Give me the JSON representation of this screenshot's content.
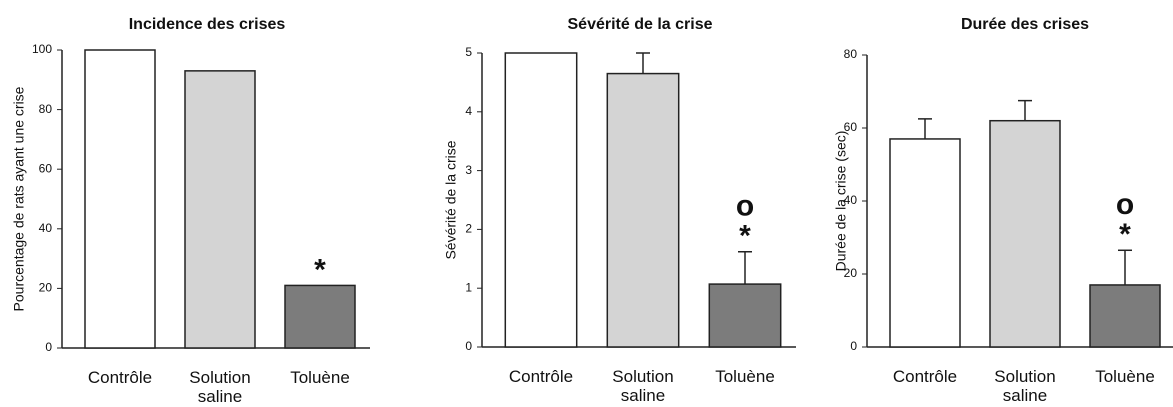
{
  "chart_data": [
    {
      "type": "bar",
      "title": "Incidence des crises",
      "ylabel": "Pourcentage de rats ayant une crise",
      "categories": [
        "Contrôle",
        "Solution saline",
        "Toluène"
      ],
      "values": [
        100,
        93,
        21
      ],
      "colors": [
        "#ffffff",
        "#d4d4d4",
        "#7c7c7c"
      ],
      "ylim": [
        0,
        100
      ],
      "yticks": [
        0,
        20,
        40,
        60,
        80,
        100
      ],
      "annotations": [
        "*"
      ]
    },
    {
      "type": "bar",
      "title": "Sévérité de la crise",
      "ylabel": "Sévérité de la crise",
      "categories": [
        "Contrôle",
        "Solution saline",
        "Toluène"
      ],
      "values": [
        5,
        4.65,
        1.07
      ],
      "errors": [
        0,
        0.35,
        0.55
      ],
      "colors": [
        "#ffffff",
        "#d4d4d4",
        "#7c7c7c"
      ],
      "ylim": [
        0,
        5
      ],
      "yticks": [
        0,
        1,
        2,
        3,
        4,
        5
      ],
      "annotations": [
        "o",
        "*"
      ]
    },
    {
      "type": "bar",
      "title": "Durée des crises",
      "ylabel": "Durée de la crise (sec)",
      "categories": [
        "Contrôle",
        "Solution saline",
        "Toluène"
      ],
      "values": [
        57,
        62,
        17
      ],
      "errors": [
        5.5,
        5.5,
        9.5
      ],
      "colors": [
        "#ffffff",
        "#d4d4d4",
        "#7c7c7c"
      ],
      "ylim": [
        0,
        80
      ],
      "yticks": [
        0,
        20,
        40,
        60,
        80
      ],
      "annotations": [
        "o",
        "*"
      ]
    }
  ]
}
